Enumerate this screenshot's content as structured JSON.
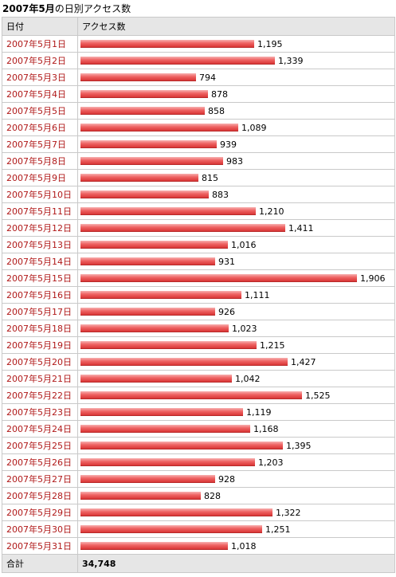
{
  "title": {
    "bold": "2007年5月",
    "rest": "の日別アクセス数"
  },
  "header": {
    "date": "日付",
    "access": "アクセス数"
  },
  "footer": {
    "label": "合計",
    "total": "34,748"
  },
  "colors": {
    "date_text": "#b01818",
    "bar": "#e04848",
    "header_bg": "#e6e6e6"
  },
  "chart_data": {
    "type": "bar",
    "orientation": "horizontal",
    "categories": [
      "2007年5月1日",
      "2007年5月2日",
      "2007年5月3日",
      "2007年5月4日",
      "2007年5月5日",
      "2007年5月6日",
      "2007年5月7日",
      "2007年5月8日",
      "2007年5月9日",
      "2007年5月10日",
      "2007年5月11日",
      "2007年5月12日",
      "2007年5月13日",
      "2007年5月14日",
      "2007年5月15日",
      "2007年5月16日",
      "2007年5月17日",
      "2007年5月18日",
      "2007年5月19日",
      "2007年5月20日",
      "2007年5月21日",
      "2007年5月22日",
      "2007年5月23日",
      "2007年5月24日",
      "2007年5月25日",
      "2007年5月26日",
      "2007年5月27日",
      "2007年5月28日",
      "2007年5月29日",
      "2007年5月30日",
      "2007年5月31日"
    ],
    "values": [
      1195,
      1339,
      794,
      878,
      858,
      1089,
      939,
      983,
      815,
      883,
      1210,
      1411,
      1016,
      931,
      1906,
      1111,
      926,
      1023,
      1215,
      1427,
      1042,
      1525,
      1119,
      1168,
      1395,
      1203,
      928,
      828,
      1322,
      1251,
      1018
    ],
    "labels": [
      "1,195",
      "1,339",
      "794",
      "878",
      "858",
      "1,089",
      "939",
      "983",
      "815",
      "883",
      "1,210",
      "1,411",
      "1,016",
      "931",
      "1,906",
      "1,111",
      "926",
      "1,023",
      "1,215",
      "1,427",
      "1,042",
      "1,525",
      "1,119",
      "1,168",
      "1,395",
      "1,203",
      "928",
      "828",
      "1,322",
      "1,251",
      "1,018"
    ],
    "title": "2007年5月の日別アクセス数",
    "xlabel": "",
    "ylabel": "",
    "xlim": [
      0,
      1906
    ]
  }
}
